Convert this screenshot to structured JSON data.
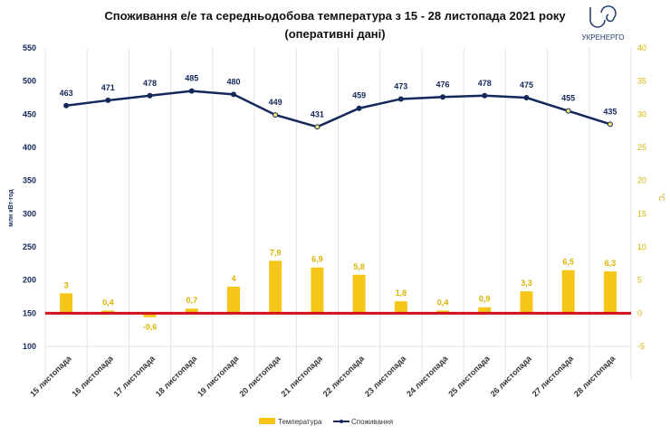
{
  "logo": {
    "text": "УКРЕНЕРГО",
    "color": "#1f3a6e"
  },
  "chart_data": {
    "type": "bar+line",
    "title": "Споживання е/е та середньодобова температура з 15 - 28 листопада 2021 року",
    "subtitle": "(оперативні дані)",
    "categories": [
      "15 листопада",
      "16 листопада",
      "17 листопада",
      "18 листопада",
      "19 листопада",
      "20 листопада",
      "21 листопада",
      "22 листопада",
      "23 листопада",
      "24 листопада",
      "25 листопада",
      "26 листопада",
      "27 листопада",
      "28 листопада"
    ],
    "series": [
      {
        "name": "Температура",
        "type": "bar",
        "axis": "right",
        "color": "#f5c518",
        "values": [
          3,
          0.4,
          -0.6,
          0.7,
          4,
          7.9,
          6.9,
          5.8,
          1.8,
          0.4,
          0.9,
          3.3,
          6.5,
          6.3
        ],
        "labels": [
          "3",
          "0,4",
          "-0,6",
          "0,7",
          "4",
          "7,9",
          "6,9",
          "5,8",
          "1,8",
          "0,4",
          "0,9",
          "3,3",
          "6,5",
          "6,3"
        ]
      },
      {
        "name": "Споживання",
        "type": "line",
        "axis": "left",
        "color": "#14285a",
        "values": [
          463,
          471,
          478,
          485,
          480,
          449,
          431,
          459,
          473,
          476,
          478,
          475,
          455,
          435
        ]
      }
    ],
    "ylabel": "млн кВт·год",
    "y2label": "°C",
    "ylim": [
      100,
      550
    ],
    "yticks": [
      100,
      150,
      200,
      250,
      300,
      350,
      400,
      450,
      500,
      550
    ],
    "y2lim": [
      -5,
      40
    ],
    "y2ticks": [
      -5,
      0,
      5,
      10,
      15,
      20,
      25,
      30,
      35,
      40
    ],
    "zero_line_color": "#d0121b",
    "grid": "vertical",
    "legend": "bottom"
  }
}
